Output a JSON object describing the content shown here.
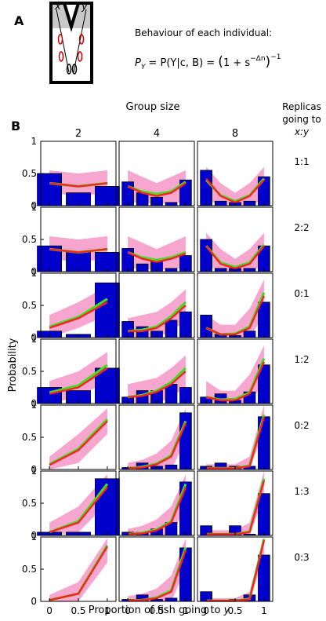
{
  "panel_a": {
    "label": "A",
    "arm_left": "x",
    "arm_right": "y",
    "behaviour_title": "Behaviour of each individual:",
    "formula": {
      "lhs": "P",
      "lhs_sub": "Y",
      "mid": " = P(Y|c, B) = ",
      "base": "1 + s",
      "exp": "−Δn",
      "outer_exp": "−1"
    }
  },
  "panel_b": {
    "label": "B",
    "col_header": "Group size",
    "row_header_line1": "Replicas",
    "row_header_line2": "going to",
    "row_header_line3": "x:y",
    "xlabel_prefix": "Proportion of fish going to ",
    "xlabel_var": "y",
    "ylabel": "Probability"
  },
  "colors": {
    "bar": "#0000cc",
    "band": "#f7a6cf",
    "model": "#ff2020",
    "fit": "#44dd22"
  },
  "chart_data": {
    "type": "bar",
    "group_sizes": [
      2,
      4,
      8
    ],
    "column_titles": [
      "2",
      "4",
      "8"
    ],
    "row_labels": [
      "1:1",
      "2:2",
      "0:1",
      "1:2",
      "0:2",
      "1:3",
      "0:3"
    ],
    "x_ticks": [
      "0",
      "0.5",
      "1"
    ],
    "y_ticks": [
      "0",
      "0.5",
      "1"
    ],
    "ylim": [
      0,
      1
    ],
    "xlim": [
      -0.15,
      1.15
    ],
    "series_types": [
      "observed bars",
      "model band",
      "model line",
      "fit line"
    ],
    "panels": [
      [
        {
          "bars": [
            0.5,
            0.2,
            0.3
          ],
          "line_red": [
            0.35,
            0.3,
            0.35
          ],
          "line_green": [
            0.35,
            0.3,
            0.35
          ],
          "band_lo": [
            0.2,
            0.15,
            0.2
          ],
          "band_hi": [
            0.55,
            0.5,
            0.55
          ]
        },
        {
          "bars": [
            0.37,
            0.2,
            0.13,
            0.05,
            0.4
          ],
          "line_red": [
            0.3,
            0.2,
            0.15,
            0.2,
            0.35
          ],
          "line_green": [
            0.3,
            0.22,
            0.18,
            0.22,
            0.37
          ],
          "band_lo": [
            0.05,
            0.05,
            0.02,
            0.05,
            0.05
          ],
          "band_hi": [
            0.55,
            0.45,
            0.35,
            0.45,
            0.55
          ]
        },
        {
          "bars": [
            0.55,
            0.07,
            0.05,
            0.07,
            0.45
          ],
          "line_red": [
            0.42,
            0.15,
            0.05,
            0.15,
            0.4
          ],
          "line_green": [
            0.4,
            0.16,
            0.07,
            0.16,
            0.42
          ],
          "band_lo": [
            0.1,
            0.0,
            0.0,
            0.0,
            0.1
          ],
          "band_hi": [
            0.6,
            0.35,
            0.2,
            0.35,
            0.6
          ]
        }
      ],
      [
        {
          "bars": [
            0.4,
            0.3,
            0.3
          ],
          "line_red": [
            0.35,
            0.3,
            0.35
          ],
          "line_green": [
            0.35,
            0.3,
            0.35
          ],
          "band_lo": [
            0.2,
            0.15,
            0.2
          ],
          "band_hi": [
            0.55,
            0.5,
            0.55
          ]
        },
        {
          "bars": [
            0.36,
            0.12,
            0.17,
            0.05,
            0.25
          ],
          "line_red": [
            0.3,
            0.2,
            0.15,
            0.2,
            0.28
          ],
          "line_green": [
            0.3,
            0.22,
            0.18,
            0.22,
            0.3
          ],
          "band_lo": [
            0.05,
            0.05,
            0.02,
            0.05,
            0.05
          ],
          "band_hi": [
            0.55,
            0.45,
            0.35,
            0.45,
            0.55
          ]
        },
        {
          "bars": [
            0.5,
            0.05,
            0.05,
            0.05,
            0.4
          ],
          "line_red": [
            0.4,
            0.12,
            0.05,
            0.12,
            0.4
          ],
          "line_green": [
            0.4,
            0.14,
            0.07,
            0.14,
            0.42
          ],
          "band_lo": [
            0.1,
            0.0,
            0.0,
            0.0,
            0.1
          ],
          "band_hi": [
            0.6,
            0.35,
            0.2,
            0.35,
            0.6
          ]
        }
      ],
      [
        {
          "bars": [
            0.1,
            0.05,
            0.85
          ],
          "line_red": [
            0.15,
            0.3,
            0.55
          ],
          "line_green": [
            0.17,
            0.32,
            0.6
          ],
          "band_lo": [
            0.0,
            0.15,
            0.35
          ],
          "band_hi": [
            0.35,
            0.55,
            0.8
          ]
        },
        {
          "bars": [
            0.25,
            0.17,
            0.1,
            0.27,
            0.4
          ],
          "line_red": [
            0.1,
            0.1,
            0.15,
            0.3,
            0.5
          ],
          "line_green": [
            0.1,
            0.12,
            0.17,
            0.33,
            0.55
          ],
          "band_lo": [
            0.0,
            0.0,
            0.0,
            0.1,
            0.25
          ],
          "band_hi": [
            0.3,
            0.35,
            0.4,
            0.55,
            0.75
          ]
        },
        {
          "bars": [
            0.35,
            0.05,
            0.03,
            0.1,
            0.55
          ],
          "line_red": [
            0.15,
            0.05,
            0.05,
            0.15,
            0.65
          ],
          "line_green": [
            0.15,
            0.05,
            0.06,
            0.17,
            0.7
          ],
          "band_lo": [
            0.0,
            0.0,
            0.0,
            0.0,
            0.35
          ],
          "band_hi": [
            0.35,
            0.2,
            0.2,
            0.45,
            0.9
          ]
        }
      ],
      [
        {
          "bars": [
            0.25,
            0.2,
            0.55
          ],
          "line_red": [
            0.15,
            0.25,
            0.55
          ],
          "line_green": [
            0.17,
            0.28,
            0.6
          ],
          "band_lo": [
            0.0,
            0.1,
            0.35
          ],
          "band_hi": [
            0.35,
            0.5,
            0.8
          ]
        },
        {
          "bars": [
            0.1,
            0.2,
            0.2,
            0.3,
            0.25
          ],
          "line_red": [
            0.1,
            0.12,
            0.18,
            0.3,
            0.5
          ],
          "line_green": [
            0.1,
            0.13,
            0.2,
            0.33,
            0.55
          ],
          "band_lo": [
            0.0,
            0.0,
            0.0,
            0.1,
            0.25
          ],
          "band_hi": [
            0.3,
            0.35,
            0.4,
            0.55,
            0.75
          ]
        },
        {
          "bars": [
            0.1,
            0.15,
            0.05,
            0.18,
            0.6
          ],
          "line_red": [
            0.1,
            0.05,
            0.05,
            0.15,
            0.65
          ],
          "line_green": [
            0.1,
            0.06,
            0.07,
            0.17,
            0.7
          ],
          "band_lo": [
            0.0,
            0.0,
            0.0,
            0.0,
            0.35
          ],
          "band_hi": [
            0.35,
            0.2,
            0.2,
            0.45,
            0.9
          ]
        }
      ],
      [
        {
          "bars": [
            0.0,
            0.0,
            0.0
          ],
          "line_red": [
            0.07,
            0.3,
            0.75
          ],
          "line_green": [
            0.08,
            0.32,
            0.78
          ],
          "band_lo": [
            0.0,
            0.1,
            0.55
          ],
          "band_hi": [
            0.2,
            0.55,
            0.95
          ]
        },
        {
          "bars": [
            0.03,
            0.1,
            0.05,
            0.07,
            0.88
          ],
          "line_red": [
            0.02,
            0.03,
            0.08,
            0.2,
            0.72
          ],
          "line_green": [
            0.02,
            0.04,
            0.09,
            0.22,
            0.75
          ],
          "band_lo": [
            0.0,
            0.0,
            0.0,
            0.0,
            0.45
          ],
          "band_hi": [
            0.1,
            0.15,
            0.25,
            0.45,
            0.95
          ]
        },
        {
          "bars": [
            0.05,
            0.1,
            0.05,
            0.05,
            0.82
          ],
          "line_red": [
            0.02,
            0.02,
            0.02,
            0.05,
            0.82
          ],
          "line_green": [
            0.02,
            0.02,
            0.02,
            0.06,
            0.85
          ],
          "band_lo": [
            0.0,
            0.0,
            0.0,
            0.0,
            0.6
          ],
          "band_hi": [
            0.08,
            0.08,
            0.08,
            0.2,
            1.0
          ]
        }
      ],
      [
        {
          "bars": [
            0.05,
            0.05,
            0.88
          ],
          "line_red": [
            0.05,
            0.2,
            0.75
          ],
          "line_green": [
            0.05,
            0.22,
            0.8
          ],
          "band_lo": [
            0.0,
            0.05,
            0.5
          ],
          "band_hi": [
            0.2,
            0.45,
            0.95
          ]
        },
        {
          "bars": [
            0.05,
            0.05,
            0.1,
            0.2,
            0.83
          ],
          "line_red": [
            0.02,
            0.03,
            0.08,
            0.2,
            0.75
          ],
          "line_green": [
            0.02,
            0.04,
            0.09,
            0.22,
            0.8
          ],
          "band_lo": [
            0.0,
            0.0,
            0.0,
            0.0,
            0.45
          ],
          "band_hi": [
            0.1,
            0.15,
            0.25,
            0.45,
            0.95
          ]
        },
        {
          "bars": [
            0.15,
            0.0,
            0.15,
            0.02,
            0.65
          ],
          "line_red": [
            0.02,
            0.02,
            0.02,
            0.05,
            0.85
          ],
          "line_green": [
            0.02,
            0.02,
            0.02,
            0.06,
            0.88
          ],
          "band_lo": [
            0.0,
            0.0,
            0.0,
            0.0,
            0.6
          ],
          "band_hi": [
            0.08,
            0.08,
            0.08,
            0.2,
            1.0
          ]
        }
      ],
      [
        {
          "bars": [
            0.0,
            0.0,
            0.0
          ],
          "line_red": [
            0.02,
            0.12,
            0.85
          ],
          "line_green": [
            0.02,
            0.12,
            0.87
          ],
          "band_lo": [
            0.0,
            0.0,
            0.6
          ],
          "band_hi": [
            0.1,
            0.3,
            0.98
          ]
        },
        {
          "bars": [
            0.03,
            0.1,
            0.03,
            0.05,
            0.83
          ],
          "line_red": [
            0.01,
            0.02,
            0.05,
            0.15,
            0.8
          ],
          "line_green": [
            0.01,
            0.02,
            0.06,
            0.17,
            0.84
          ],
          "band_lo": [
            0.0,
            0.0,
            0.0,
            0.0,
            0.5
          ],
          "band_hi": [
            0.08,
            0.12,
            0.2,
            0.4,
            0.98
          ]
        },
        {
          "bars": [
            0.15,
            0.02,
            0.03,
            0.1,
            0.72
          ],
          "line_red": [
            0.01,
            0.01,
            0.01,
            0.03,
            0.95
          ],
          "line_green": [
            0.01,
            0.01,
            0.01,
            0.04,
            0.97
          ],
          "band_lo": [
            0.0,
            0.0,
            0.0,
            0.0,
            0.7
          ],
          "band_hi": [
            0.05,
            0.05,
            0.05,
            0.15,
            1.0
          ]
        }
      ]
    ]
  }
}
